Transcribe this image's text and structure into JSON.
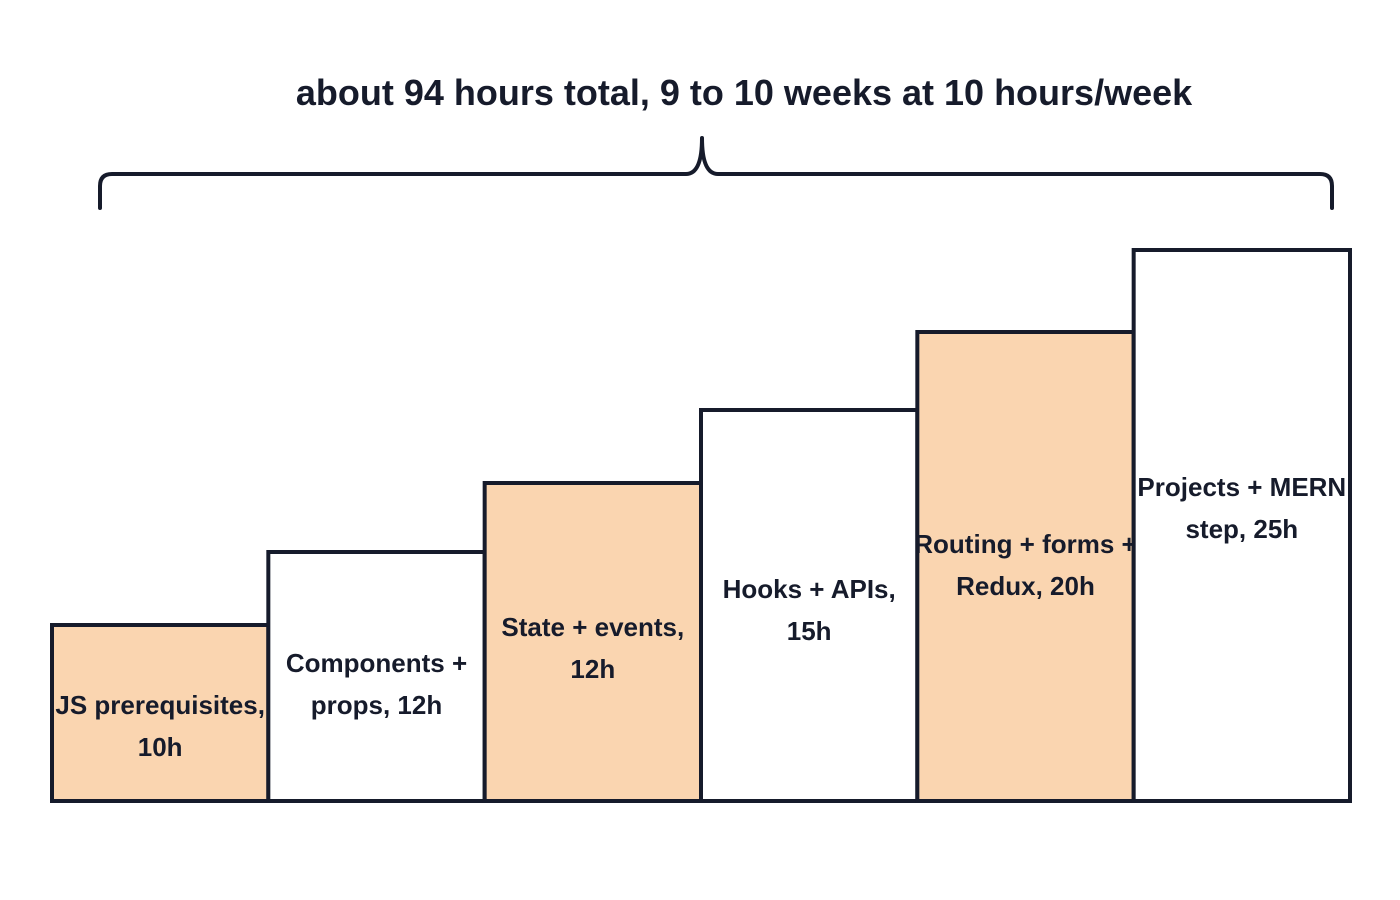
{
  "header": {
    "title": "about 94 hours total, 9 to 10 weeks at 10 hours/week"
  },
  "colors": {
    "ink": "#161b2b",
    "accent_fill": "#fad5b0",
    "plain_fill": "#ffffff"
  },
  "steps": [
    {
      "lines": [
        "JS prerequisites,",
        "10h"
      ],
      "hours": 10,
      "highlighted": true
    },
    {
      "lines": [
        "Components +",
        "props, 12h"
      ],
      "hours": 12,
      "highlighted": false
    },
    {
      "lines": [
        "State + events,",
        "12h"
      ],
      "hours": 12,
      "highlighted": true
    },
    {
      "lines": [
        "Hooks + APIs,",
        "15h"
      ],
      "hours": 15,
      "highlighted": false
    },
    {
      "lines": [
        "Routing + forms +",
        "Redux, 20h"
      ],
      "hours": 20,
      "highlighted": true
    },
    {
      "lines": [
        "Projects + MERN",
        "step, 25h"
      ],
      "hours": 25,
      "highlighted": false
    }
  ]
}
